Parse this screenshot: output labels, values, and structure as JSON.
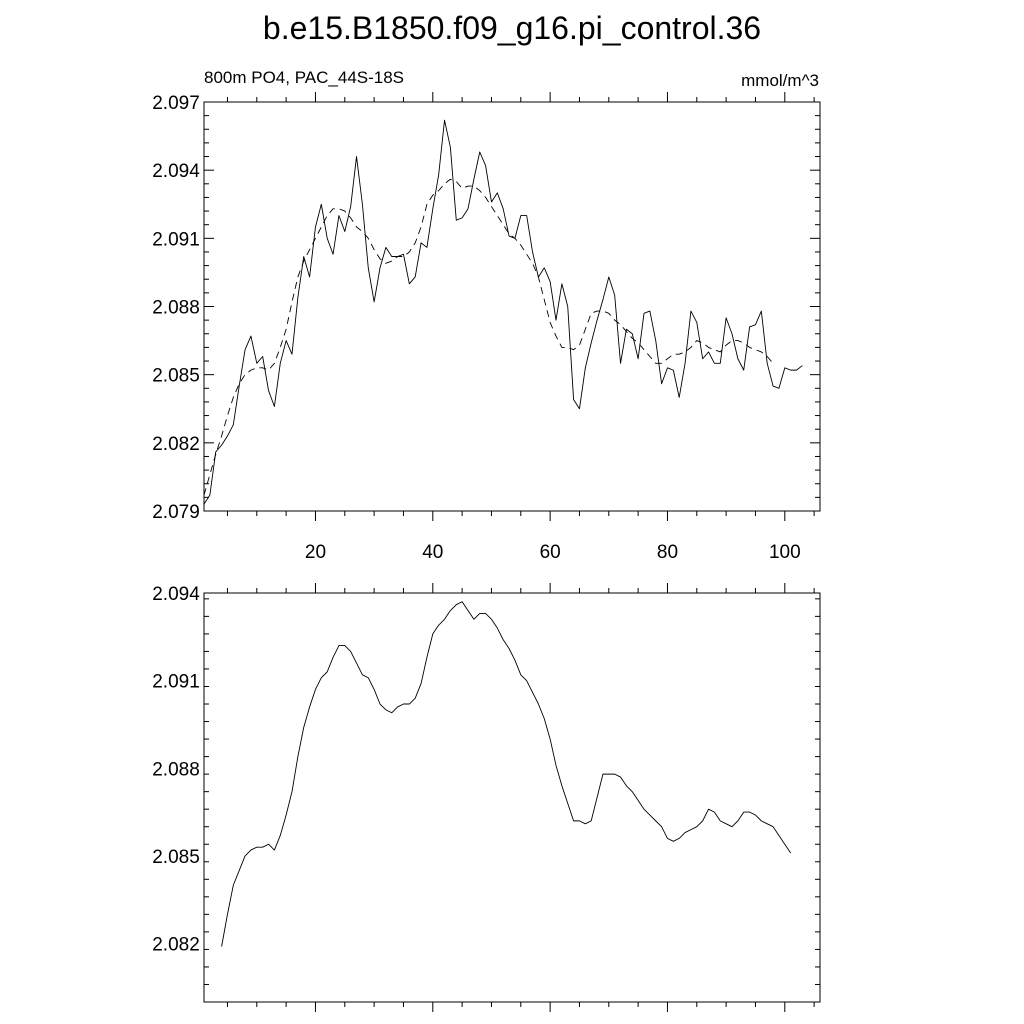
{
  "chart_data": [
    {
      "type": "line",
      "title": "b.e15.B1850.f09_g16.pi_control.36",
      "left_label": "800m PO4, PAC_44S-18S",
      "right_label": "mmol/m^3",
      "xlim": [
        1,
        106
      ],
      "ylim": [
        2.079,
        2.097
      ],
      "x_ticks": [
        20,
        40,
        60,
        80,
        100
      ],
      "y_ticks": [
        "2.079",
        "2.082",
        "2.085",
        "2.088",
        "2.091",
        "2.094",
        "2.097"
      ],
      "x_tick_labels_shown": true,
      "series": [
        {
          "style": "solid",
          "x_start": 1,
          "values": [
            2.0793,
            2.0797,
            2.0816,
            2.0819,
            2.0823,
            2.0828,
            2.0845,
            2.0861,
            2.0867,
            2.0855,
            2.0858,
            2.0843,
            2.0836,
            2.0855,
            2.0865,
            2.0859,
            2.0884,
            2.0902,
            2.0893,
            2.0915,
            2.0925,
            2.091,
            2.0903,
            2.092,
            2.0913,
            2.0924,
            2.0946,
            2.0925,
            2.0897,
            2.0882,
            2.0897,
            2.0906,
            2.0902,
            2.0902,
            2.0903,
            2.089,
            2.0893,
            2.0908,
            2.0906,
            2.0923,
            2.0938,
            2.0962,
            2.095,
            2.0918,
            2.0919,
            2.0923,
            2.0936,
            2.0948,
            2.0942,
            2.0926,
            2.093,
            2.0923,
            2.0911,
            2.091,
            2.092,
            2.092,
            2.0904,
            2.0893,
            2.0897,
            2.0891,
            2.0874,
            2.089,
            2.088,
            2.0839,
            2.0835,
            2.0853,
            2.0864,
            2.0874,
            2.0883,
            2.0893,
            2.0885,
            2.0855,
            2.087,
            2.0868,
            2.0857,
            2.0877,
            2.0878,
            2.0865,
            2.0846,
            2.0853,
            2.0852,
            2.084,
            2.0855,
            2.0878,
            2.0873,
            2.0857,
            2.086,
            2.0855,
            2.0855,
            2.0875,
            2.0868,
            2.0857,
            2.0852,
            2.0871,
            2.0872,
            2.0878,
            2.0855,
            2.0845,
            2.0844,
            2.0853,
            2.0852,
            2.0852,
            2.0854
          ]
        },
        {
          "style": "dashed",
          "x_start": 1,
          "values": [
            2.0797,
            2.0806,
            2.0815,
            2.0823,
            2.0832,
            2.084,
            2.0846,
            2.085,
            2.0852,
            2.0853,
            2.0853,
            2.0852,
            2.0855,
            2.0862,
            2.087,
            2.0882,
            2.0893,
            2.09,
            2.0905,
            2.091,
            2.0915,
            2.092,
            2.0923,
            2.0923,
            2.0922,
            2.0919,
            2.0915,
            2.0913,
            2.091,
            2.0905,
            2.0901,
            2.0899,
            2.09,
            2.0902,
            2.0902,
            2.0904,
            2.0908,
            2.0915,
            2.0925,
            2.0929,
            2.0931,
            2.0934,
            2.0936,
            2.0935,
            2.0932,
            2.0933,
            2.0933,
            2.0931,
            2.0928,
            2.0924,
            2.092,
            2.0916,
            2.0912,
            2.091,
            2.0907,
            2.0903,
            2.0899,
            2.0893,
            2.0883,
            2.0873,
            2.0867,
            2.0862,
            2.0862,
            2.0861,
            2.0863,
            2.087,
            2.0877,
            2.0878,
            2.0878,
            2.0877,
            2.0874,
            2.0872,
            2.0869,
            2.0866,
            2.0864,
            2.0861,
            2.0858,
            2.0855,
            2.0855,
            2.0857,
            2.0859,
            2.0859,
            2.086,
            2.0862,
            2.0865,
            2.0864,
            2.0862,
            2.0861,
            2.086,
            2.0863,
            2.0865,
            2.0865,
            2.0864,
            2.0862,
            2.0861,
            2.086,
            2.0858,
            2.0855
          ]
        }
      ]
    },
    {
      "type": "line",
      "xlim": [
        1,
        106
      ],
      "ylim": [
        2.08,
        2.094
      ],
      "x_ticks": [
        20,
        40,
        60,
        80,
        100
      ],
      "y_ticks": [
        "2.082",
        "2.085",
        "2.088",
        "2.091",
        "2.094"
      ],
      "x_tick_labels_shown": false,
      "series": [
        {
          "style": "solid",
          "x_start": 4,
          "values": [
            2.0819,
            2.083,
            2.084,
            2.0845,
            2.085,
            2.0852,
            2.0853,
            2.0853,
            2.0854,
            2.0852,
            2.0857,
            2.0864,
            2.0872,
            2.0884,
            2.0894,
            2.0901,
            2.0907,
            2.0911,
            2.0913,
            2.0918,
            2.0922,
            2.0922,
            2.092,
            2.0916,
            2.0912,
            2.0911,
            2.0907,
            2.0902,
            2.09,
            2.0899,
            2.0901,
            2.0902,
            2.0902,
            2.0904,
            2.0909,
            2.0918,
            2.0926,
            2.0929,
            2.0931,
            2.0934,
            2.0936,
            2.0937,
            2.0934,
            2.0931,
            2.0933,
            2.0933,
            2.0931,
            2.0928,
            2.0924,
            2.0921,
            2.0917,
            2.0912,
            2.091,
            2.0906,
            2.0902,
            2.0897,
            2.089,
            2.0881,
            2.0874,
            2.0868,
            2.0862,
            2.0862,
            2.0861,
            2.0862,
            2.087,
            2.0878,
            2.0878,
            2.0878,
            2.0877,
            2.0874,
            2.0872,
            2.0869,
            2.0866,
            2.0864,
            2.0862,
            2.086,
            2.0856,
            2.0855,
            2.0856,
            2.0858,
            2.0859,
            2.086,
            2.0862,
            2.0866,
            2.0865,
            2.0862,
            2.0861,
            2.086,
            2.0862,
            2.0865,
            2.0865,
            2.0864,
            2.0862,
            2.0861,
            2.086,
            2.0857,
            2.0854,
            2.0851
          ]
        }
      ]
    }
  ]
}
